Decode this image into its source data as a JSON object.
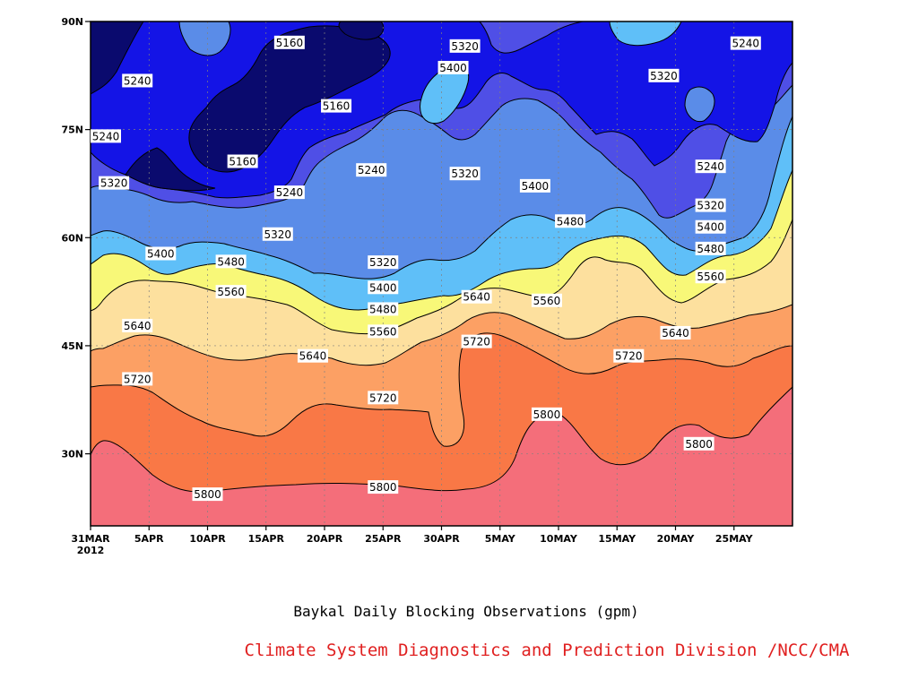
{
  "chart_data": {
    "type": "contour",
    "title": "Baykal Daily Blocking Observations (gpm)",
    "credit": "Climate System Diagnostics and Prediction Division /NCC/CMA",
    "x_ticks": [
      "31MAR",
      "5APR",
      "10APR",
      "15APR",
      "20APR",
      "25APR",
      "30APR",
      "5MAY",
      "10MAY",
      "15MAY",
      "20MAY",
      "25MAY"
    ],
    "x_start_year": "2012",
    "y_ticks": [
      "30N",
      "45N",
      "60N",
      "75N",
      "90N"
    ],
    "x_range": [
      "2012-03-31",
      "2012-05-30"
    ],
    "y_range": [
      20,
      90
    ],
    "grid": "dotted",
    "levels": [
      5160,
      5240,
      5320,
      5400,
      5480,
      5560,
      5640,
      5720,
      5800
    ],
    "colors": {
      "below_5160": "#0a0a6e",
      "5160_5240": "#1414e6",
      "5240_5320": "#4f4fe6",
      "5320_5400": "#5a8ce8",
      "5400_5480": "#5fbff8",
      "5480_5560": "#f8f878",
      "5560_5640": "#fde09e",
      "5640_5720": "#fca064",
      "5720_5800": "#f97846",
      "above_5800": "#f46e7a"
    },
    "contour_labels": [
      {
        "value": "5160",
        "date": "2012-04-17",
        "lat": 87.1
      },
      {
        "value": "5160",
        "date": "2012-04-21",
        "lat": 78.3
      },
      {
        "value": "5160",
        "date": "2012-04-13",
        "lat": 70.6
      },
      {
        "value": "5240",
        "date": "2012-04-04",
        "lat": 81.8
      },
      {
        "value": "5240",
        "date": "2012-03-31",
        "lat": 74.1
      },
      {
        "value": "5240",
        "date": "2012-04-24",
        "lat": 69.4
      },
      {
        "value": "5240",
        "date": "2012-04-17",
        "lat": 66.3
      },
      {
        "value": "5240",
        "date": "2012-05-26",
        "lat": 87.0
      },
      {
        "value": "5240",
        "date": "2012-05-23",
        "lat": 69.9
      },
      {
        "value": "5320",
        "date": "2012-05-02",
        "lat": 86.6
      },
      {
        "value": "5320",
        "date": "2012-05-02",
        "lat": 68.9
      },
      {
        "value": "5320",
        "date": "2012-05-19",
        "lat": 82.5
      },
      {
        "value": "5320",
        "date": "2012-04-02",
        "lat": 67.6
      },
      {
        "value": "5320",
        "date": "2012-04-16",
        "lat": 60.5
      },
      {
        "value": "5320",
        "date": "2012-04-25",
        "lat": 56.6
      },
      {
        "value": "5320",
        "date": "2012-05-23",
        "lat": 64.5
      },
      {
        "value": "5400",
        "date": "2012-05-01",
        "lat": 83.6
      },
      {
        "value": "5400",
        "date": "2012-04-06",
        "lat": 57.8
      },
      {
        "value": "5400",
        "date": "2012-04-25",
        "lat": 53.1
      },
      {
        "value": "5400",
        "date": "2012-05-08",
        "lat": 67.2
      },
      {
        "value": "5400",
        "date": "2012-05-23",
        "lat": 61.5
      },
      {
        "value": "5480",
        "date": "2012-04-12",
        "lat": 56.7
      },
      {
        "value": "5480",
        "date": "2012-04-25",
        "lat": 50.1
      },
      {
        "value": "5480",
        "date": "2012-05-11",
        "lat": 62.3
      },
      {
        "value": "5480",
        "date": "2012-05-23",
        "lat": 58.5
      },
      {
        "value": "5560",
        "date": "2012-04-12",
        "lat": 52.5
      },
      {
        "value": "5560",
        "date": "2012-04-25",
        "lat": 47.0
      },
      {
        "value": "5560",
        "date": "2012-05-09",
        "lat": 51.3
      },
      {
        "value": "5560",
        "date": "2012-05-23",
        "lat": 54.6
      },
      {
        "value": "5640",
        "date": "2012-04-04",
        "lat": 47.8
      },
      {
        "value": "5640",
        "date": "2012-04-19",
        "lat": 43.6
      },
      {
        "value": "5640",
        "date": "2012-05-03",
        "lat": 51.8
      },
      {
        "value": "5640",
        "date": "2012-05-20",
        "lat": 46.8
      },
      {
        "value": "5720",
        "date": "2012-04-04",
        "lat": 40.4
      },
      {
        "value": "5720",
        "date": "2012-04-25",
        "lat": 37.8
      },
      {
        "value": "5720",
        "date": "2012-05-03",
        "lat": 45.6
      },
      {
        "value": "5720",
        "date": "2012-05-16",
        "lat": 43.6
      },
      {
        "value": "5800",
        "date": "2012-04-10",
        "lat": 24.4
      },
      {
        "value": "5800",
        "date": "2012-04-25",
        "lat": 25.4
      },
      {
        "value": "5800",
        "date": "2012-05-09",
        "lat": 35.5
      },
      {
        "value": "5800",
        "date": "2012-05-22",
        "lat": 31.4
      }
    ]
  }
}
